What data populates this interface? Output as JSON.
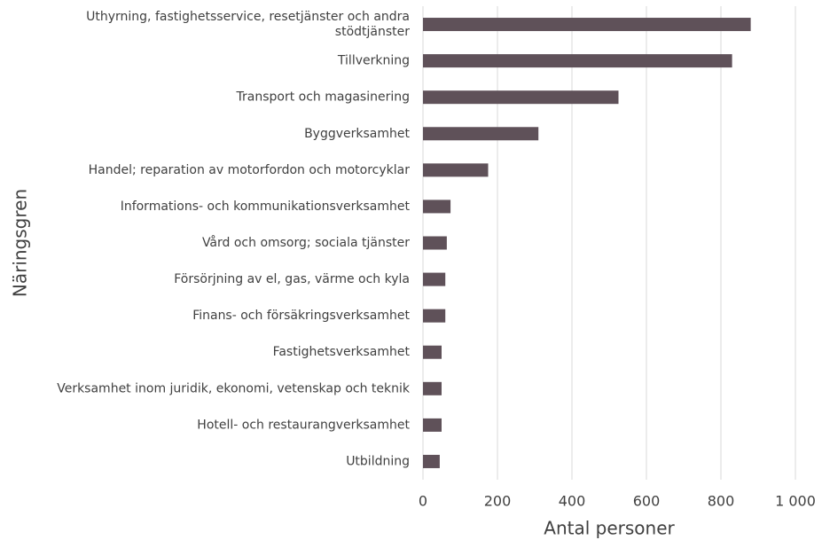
{
  "chart_data": {
    "type": "barh",
    "xlabel": "Antal personer",
    "ylabel": "Näringsgren",
    "categories": [
      "Uthyrning, fastighetsservice, resetjänster och andra stödtjänster",
      "Tillverkning",
      "Transport och magasinering",
      "Byggverksamhet",
      "Handel; reparation av motorfordon och motorcyklar",
      "Informations- och kommunikationsverksamhet",
      "Vård och omsorg; sociala tjänster",
      "Försörjning av el, gas, värme och kyla",
      "Finans- och försäkringsverksamhet",
      "Fastighetsverksamhet",
      "Verksamhet inom juridik, ekonomi, vetenskap och teknik",
      "Hotell- och restaurangverksamhet",
      "Utbildning"
    ],
    "values": [
      880,
      830,
      525,
      310,
      175,
      74,
      64,
      60,
      60,
      50,
      50,
      50,
      45
    ],
    "color": "#5f5159",
    "xlim": [
      0,
      1000
    ],
    "xticks": [
      0,
      200,
      400,
      600,
      800,
      {
        "value": 1000,
        "label": "1 000"
      }
    ],
    "grid": true
  }
}
